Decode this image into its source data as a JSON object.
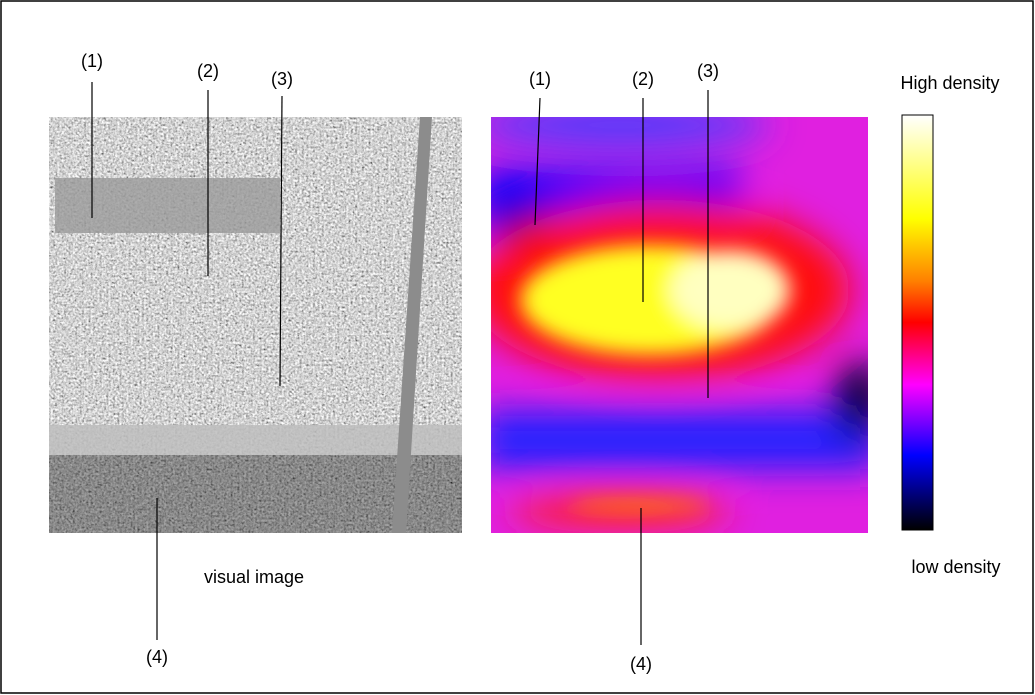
{
  "left_panel": {
    "labels": [
      "(1)",
      "(2)",
      "(3)",
      "(4)"
    ],
    "caption": "visual image"
  },
  "right_panel": {
    "labels": [
      "(1)",
      "(2)",
      "(3)",
      "(4)"
    ]
  },
  "colorbar": {
    "top_label": "High density",
    "bottom_label": "low density"
  }
}
